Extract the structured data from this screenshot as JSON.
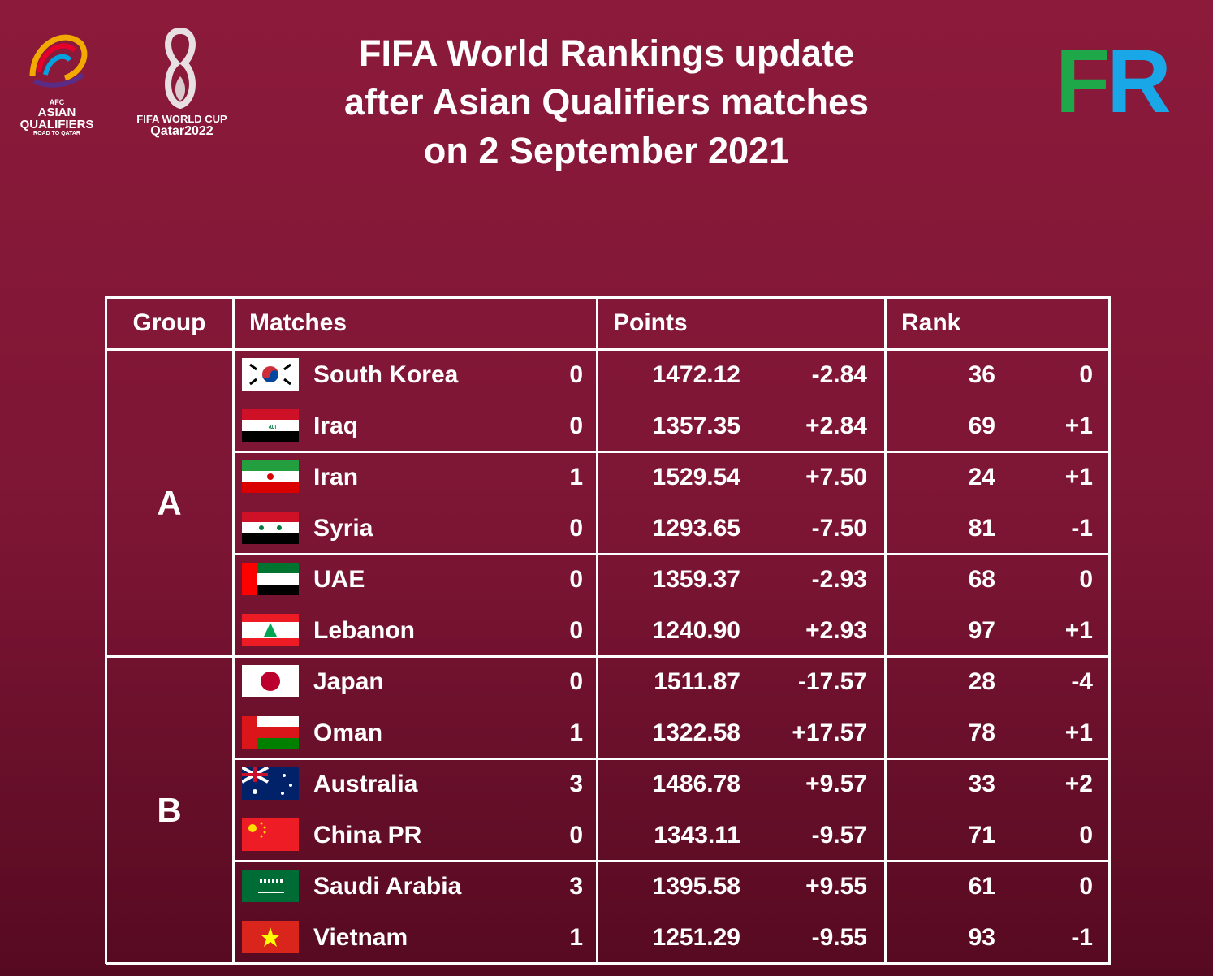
{
  "header": {
    "title": [
      "FIFA World Rankings update",
      "after Asian Qualifiers matches",
      "on 2 September 2021"
    ],
    "logos": {
      "afc": [
        "AFC",
        "ASIAN",
        "QUALIFIERS",
        "ROAD TO QATAR"
      ],
      "fifa": [
        "FIFA WORLD CUP",
        "Qatar2022"
      ],
      "brand": [
        "F",
        "R"
      ]
    }
  },
  "table": {
    "columns": [
      "Group",
      "Matches",
      "Points",
      "Rank"
    ],
    "groups": [
      {
        "name": "A",
        "matches": [
          [
            {
              "team": "South Korea",
              "score": "0",
              "points": "1472.12",
              "change": "-2.84",
              "rank": "36",
              "rank_change": "0"
            },
            {
              "team": "Iraq",
              "score": "0",
              "points": "1357.35",
              "change": "+2.84",
              "rank": "69",
              "rank_change": "+1"
            }
          ],
          [
            {
              "team": "Iran",
              "score": "1",
              "points": "1529.54",
              "change": "+7.50",
              "rank": "24",
              "rank_change": "+1"
            },
            {
              "team": "Syria",
              "score": "0",
              "points": "1293.65",
              "change": "-7.50",
              "rank": "81",
              "rank_change": "-1"
            }
          ],
          [
            {
              "team": "UAE",
              "score": "0",
              "points": "1359.37",
              "change": "-2.93",
              "rank": "68",
              "rank_change": "0"
            },
            {
              "team": "Lebanon",
              "score": "0",
              "points": "1240.90",
              "change": "+2.93",
              "rank": "97",
              "rank_change": "+1"
            }
          ]
        ]
      },
      {
        "name": "B",
        "matches": [
          [
            {
              "team": "Japan",
              "score": "0",
              "points": "1511.87",
              "change": "-17.57",
              "rank": "28",
              "rank_change": "-4"
            },
            {
              "team": "Oman",
              "score": "1",
              "points": "1322.58",
              "change": "+17.57",
              "rank": "78",
              "rank_change": "+1"
            }
          ],
          [
            {
              "team": "Australia",
              "score": "3",
              "points": "1486.78",
              "change": "+9.57",
              "rank": "33",
              "rank_change": "+2"
            },
            {
              "team": "China PR",
              "score": "0",
              "points": "1343.11",
              "change": "-9.57",
              "rank": "71",
              "rank_change": "0"
            }
          ],
          [
            {
              "team": "Saudi Arabia",
              "score": "3",
              "points": "1395.58",
              "change": "+9.55",
              "rank": "61",
              "rank_change": "0"
            },
            {
              "team": "Vietnam",
              "score": "1",
              "points": "1251.29",
              "change": "-9.55",
              "rank": "93",
              "rank_change": "-1"
            }
          ]
        ]
      }
    ]
  }
}
